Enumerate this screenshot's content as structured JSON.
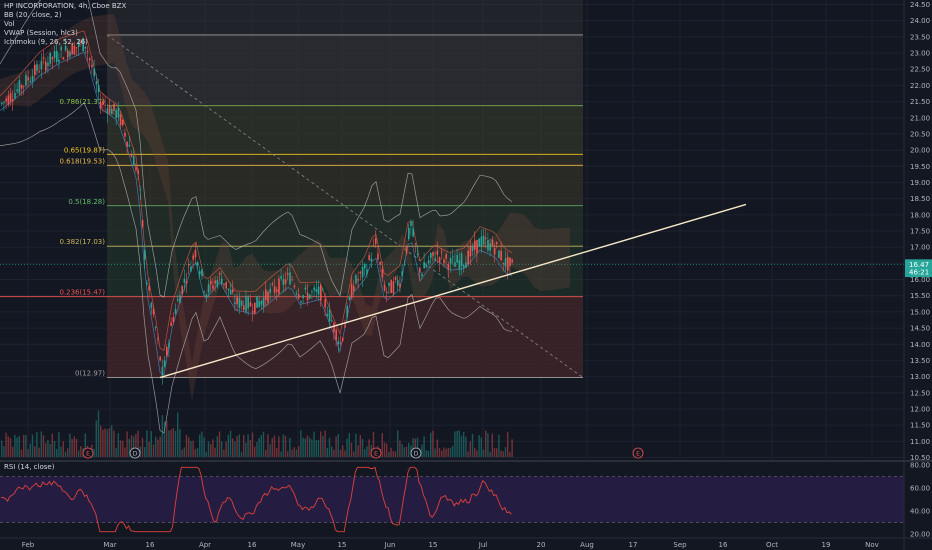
{
  "header": {
    "symbol_line": "HP INCORPORATION, 4h, Cboe BZX",
    "indicators": [
      "BB (20, close, 2)",
      "Vol",
      "VWAP (Session, hlc3)",
      "Ichimoku (9, 26, 52, 26)"
    ]
  },
  "rsi_title": "RSI (14, close)",
  "colors": {
    "background": "#131722",
    "up": "#26a69a",
    "down": "#ef5350",
    "trendline": "#f5e6c8",
    "rsi_line": "#e0413a",
    "rsi_fill": "#2a1f4a",
    "price_tag": "#26a69a"
  },
  "chart_data": {
    "type": "candlestick",
    "y_axis": {
      "range": [
        10.5,
        24.5
      ],
      "ticks": [
        "24.50",
        "24.00",
        "23.50",
        "23.00",
        "22.50",
        "22.00",
        "21.50",
        "21.00",
        "20.50",
        "20.00",
        "19.50",
        "19.00",
        "18.50",
        "18.00",
        "17.50",
        "17.00",
        "16.50",
        "16.00",
        "15.50",
        "15.00",
        "14.50",
        "14.00",
        "13.50",
        "13.00",
        "12.50",
        "12.00",
        "11.50",
        "11.00",
        "10.50"
      ]
    },
    "x_axis": {
      "ticks": [
        "Feb",
        "Mar",
        "16",
        "Apr",
        "16",
        "May",
        "15",
        "Jun",
        "15",
        "Jul",
        "20",
        "Aug",
        "17",
        "Sep",
        "16",
        "Oct",
        "19",
        "Nov"
      ]
    },
    "last_price": {
      "label": "16.47",
      "value": 16.47
    },
    "countdown": {
      "label": "46:21",
      "value": 16.23
    },
    "fibonacci": [
      {
        "label": "",
        "value": 23.56
      },
      {
        "label": "0.786(21.37)",
        "value": 21.37
      },
      {
        "label": "0.65(19.87)",
        "value": 19.87
      },
      {
        "label": "0.618(19.53)",
        "value": 19.53
      },
      {
        "label": "0.5(18.28)",
        "value": 18.28
      },
      {
        "label": "0.382(17.03)",
        "value": 17.03
      },
      {
        "label": "0.236(15.47)",
        "value": 15.47
      },
      {
        "label": "0(12.97)",
        "value": 12.97
      }
    ],
    "trendline": {
      "start": {
        "x_frac": 0.0,
        "price": 12.97
      },
      "end": {
        "x_frac": 1.0,
        "price": 18.32
      }
    },
    "events": [
      "E",
      "D",
      "E",
      "D",
      "E"
    ],
    "rsi": {
      "range": [
        20,
        80
      ],
      "ticks": [
        "80.00",
        "60.00",
        "40.00",
        "20.00"
      ]
    },
    "grid": true
  }
}
